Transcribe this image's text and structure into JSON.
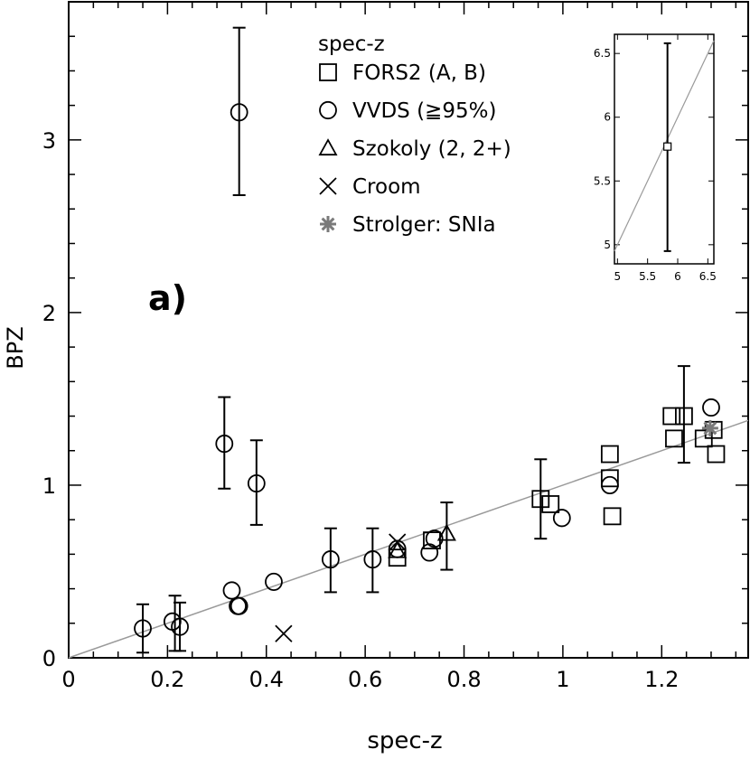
{
  "chart_data": {
    "type": "scatter",
    "title": "",
    "panel_label": "a)",
    "xlabel": "spec-z",
    "ylabel": "BPZ",
    "xlim": [
      0,
      1.375
    ],
    "ylim": [
      0,
      3.8
    ],
    "xticks": [
      0,
      0.2,
      0.4,
      0.6,
      0.8,
      1,
      1.2
    ],
    "xtick_labels": [
      "0",
      "0.2",
      "0.4",
      "0.6",
      "0.8",
      "1",
      "1.2"
    ],
    "yticks": [
      0,
      1,
      2,
      3
    ],
    "ytick_labels": [
      "0",
      "1",
      "2",
      "3"
    ],
    "grid": false,
    "reference_line": {
      "name": "one-to-one",
      "from": [
        0,
        0
      ],
      "to": [
        1.375,
        1.375
      ],
      "color": "#9a9a9a"
    },
    "legend": {
      "title": "spec-z",
      "placement": "top-center",
      "entries": [
        {
          "label": "FORS2 (A, B)",
          "marker": "square"
        },
        {
          "label": "VVDS (≧95%)",
          "marker": "circle"
        },
        {
          "label": "Szokoly (2, 2+)",
          "marker": "triangle"
        },
        {
          "label": "Croom",
          "marker": "cross"
        },
        {
          "label": "Strolger: SNIa",
          "marker": "asterisk"
        }
      ]
    },
    "series": [
      {
        "name": "FORS2 (A, B)",
        "marker": "square",
        "points": [
          {
            "x": 0.665,
            "y": 0.58
          },
          {
            "x": 0.735,
            "y": 0.68
          },
          {
            "x": 0.955,
            "y": 0.92
          },
          {
            "x": 0.975,
            "y": 0.89
          },
          {
            "x": 1.095,
            "y": 1.18
          },
          {
            "x": 1.095,
            "y": 1.04
          },
          {
            "x": 1.1,
            "y": 0.82
          },
          {
            "x": 1.22,
            "y": 1.4
          },
          {
            "x": 1.245,
            "y": 1.4
          },
          {
            "x": 1.225,
            "y": 1.27
          },
          {
            "x": 1.285,
            "y": 1.27
          },
          {
            "x": 1.305,
            "y": 1.32
          },
          {
            "x": 1.31,
            "y": 1.18
          }
        ]
      },
      {
        "name": "VVDS (≧95%)",
        "marker": "circle",
        "points": [
          {
            "x": 0.345,
            "y": 3.16
          },
          {
            "x": 0.315,
            "y": 1.24
          },
          {
            "x": 0.38,
            "y": 1.01
          },
          {
            "x": 0.15,
            "y": 0.17
          },
          {
            "x": 0.21,
            "y": 0.21
          },
          {
            "x": 0.225,
            "y": 0.18
          },
          {
            "x": 0.33,
            "y": 0.39
          },
          {
            "x": 0.342,
            "y": 0.3
          },
          {
            "x": 0.345,
            "y": 0.3
          },
          {
            "x": 0.415,
            "y": 0.44
          },
          {
            "x": 0.53,
            "y": 0.57
          },
          {
            "x": 0.615,
            "y": 0.57
          },
          {
            "x": 0.665,
            "y": 0.63
          },
          {
            "x": 0.73,
            "y": 0.61
          },
          {
            "x": 0.74,
            "y": 0.69
          },
          {
            "x": 0.998,
            "y": 0.81
          },
          {
            "x": 1.095,
            "y": 1.0
          },
          {
            "x": 1.3,
            "y": 1.45
          }
        ]
      },
      {
        "name": "Szokoly (2, 2+)",
        "marker": "triangle",
        "points": [
          {
            "x": 0.665,
            "y": 0.62
          },
          {
            "x": 0.765,
            "y": 0.72
          }
        ]
      },
      {
        "name": "Croom",
        "marker": "cross",
        "points": [
          {
            "x": 0.435,
            "y": 0.14
          },
          {
            "x": 0.665,
            "y": 0.67
          }
        ]
      },
      {
        "name": "Strolger: SNIa",
        "marker": "asterisk",
        "points": [
          {
            "x": 1.298,
            "y": 1.33
          }
        ]
      }
    ],
    "error_bars": [
      {
        "x": 0.345,
        "low": 2.68,
        "high": 3.65
      },
      {
        "x": 0.315,
        "low": 0.98,
        "high": 1.51
      },
      {
        "x": 0.38,
        "low": 0.77,
        "high": 1.26
      },
      {
        "x": 0.15,
        "low": 0.03,
        "high": 0.31
      },
      {
        "x": 0.215,
        "low": 0.04,
        "high": 0.36
      },
      {
        "x": 0.225,
        "low": 0.04,
        "high": 0.32
      },
      {
        "x": 0.53,
        "low": 0.38,
        "high": 0.75
      },
      {
        "x": 0.615,
        "low": 0.38,
        "high": 0.75
      },
      {
        "x": 0.765,
        "low": 0.51,
        "high": 0.9
      },
      {
        "x": 0.955,
        "low": 0.69,
        "high": 1.15
      },
      {
        "x": 1.245,
        "low": 1.13,
        "high": 1.69
      }
    ],
    "inset": {
      "xlim": [
        4.95,
        6.6
      ],
      "ylim": [
        4.85,
        6.65
      ],
      "xticks": [
        5,
        5.5,
        6,
        6.5
      ],
      "xtick_labels": [
        "5",
        "5.5",
        "6",
        "6.5"
      ],
      "yticks": [
        5,
        5.5,
        6,
        6.5
      ],
      "ytick_labels": [
        "5",
        "5.5",
        "6",
        "6.5"
      ],
      "points": [
        {
          "x": 5.83,
          "y": 5.77,
          "marker": "square",
          "low": 4.95,
          "high": 6.58
        }
      ],
      "reference_line": {
        "from": [
          4.95,
          4.95
        ],
        "to": [
          6.6,
          6.6
        ]
      }
    }
  }
}
